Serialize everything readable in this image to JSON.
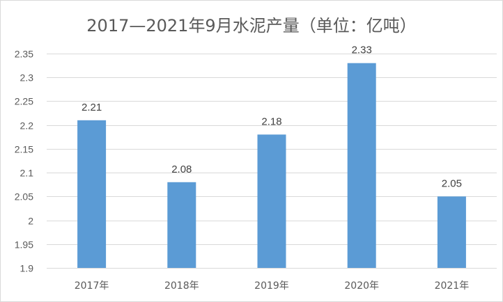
{
  "chart_data": {
    "type": "bar",
    "title": "2017—2021年9月水泥产量（单位：亿吨）",
    "xlabel": "",
    "ylabel": "",
    "categories": [
      "2017年",
      "2018年",
      "2019年",
      "2020年",
      "2021年"
    ],
    "values": [
      2.21,
      2.08,
      2.18,
      2.33,
      2.05
    ],
    "data_labels": [
      "2.21",
      "2.08",
      "2.18",
      "2.33",
      "2.05"
    ],
    "ylim": [
      1.9,
      2.35
    ],
    "yticks": [
      1.9,
      1.95,
      2,
      2.05,
      2.1,
      2.15,
      2.2,
      2.25,
      2.3,
      2.35
    ],
    "ytick_labels": [
      "1.9",
      "1.95",
      "2",
      "2.05",
      "2.1",
      "2.15",
      "2.2",
      "2.25",
      "2.3",
      "2.35"
    ],
    "grid": true,
    "legend": "none",
    "bar_color": "#5b9bd5",
    "grid_color": "#d9d9d9"
  }
}
